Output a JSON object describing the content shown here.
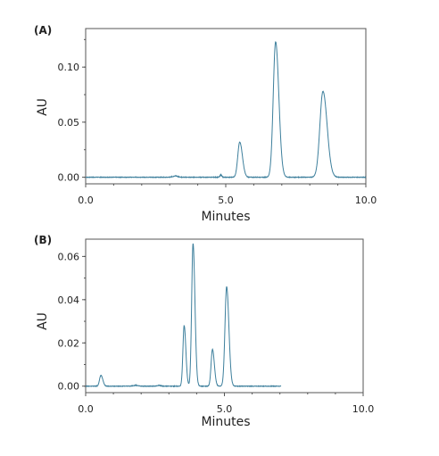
{
  "chart_data": [
    {
      "type": "line",
      "panel_label": "(A)",
      "xlabel": "Minutes",
      "ylabel": "AU",
      "xlim": [
        0,
        10
      ],
      "ylim": [
        -0.006,
        0.135
      ],
      "x_ticks": [
        "0.0",
        "5.0",
        "10.0"
      ],
      "y_ticks": [
        "0.00",
        "0.05",
        "0.10"
      ],
      "y_tick_values": [
        0,
        0.05,
        0.1
      ],
      "x_tick_values": [
        0,
        5,
        10
      ],
      "x_end": 10.0,
      "line_color": "#3d7f9c",
      "baseline_noise": [
        [
          3.0,
          3.4,
          0.0015
        ],
        [
          4.75,
          4.9,
          0.003
        ]
      ],
      "peaks": [
        {
          "rt": 5.5,
          "height": 0.032,
          "width": 0.07
        },
        {
          "rt": 6.78,
          "height": 0.123,
          "width": 0.085
        },
        {
          "rt": 8.47,
          "height": 0.078,
          "width": 0.11
        }
      ],
      "grid": false
    },
    {
      "type": "line",
      "panel_label": "(B)",
      "xlabel": "Minutes",
      "ylabel": "AU",
      "xlim": [
        0,
        10
      ],
      "ylim": [
        -0.003,
        0.068
      ],
      "x_ticks": [
        "0.0",
        "5.0",
        "10.0"
      ],
      "y_ticks": [
        "0.00",
        "0.02",
        "0.04",
        "0.06"
      ],
      "y_tick_values": [
        0,
        0.02,
        0.04,
        0.06
      ],
      "x_tick_values": [
        0,
        5,
        10
      ],
      "x_end": 7.05,
      "line_color": "#3d7f9c",
      "baseline_noise": [
        [
          1.6,
          2.0,
          0.0005
        ],
        [
          2.5,
          2.8,
          0.0005
        ]
      ],
      "peaks": [
        {
          "rt": 0.55,
          "height": 0.005,
          "width": 0.05
        },
        {
          "rt": 3.55,
          "height": 0.028,
          "width": 0.045
        },
        {
          "rt": 3.87,
          "height": 0.066,
          "width": 0.05
        },
        {
          "rt": 4.57,
          "height": 0.017,
          "width": 0.05
        },
        {
          "rt": 5.08,
          "height": 0.046,
          "width": 0.06
        }
      ],
      "grid": false
    }
  ]
}
